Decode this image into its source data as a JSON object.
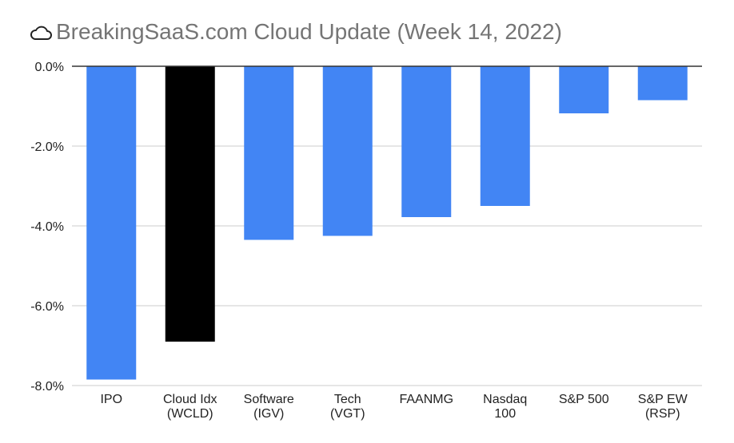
{
  "chart_data": {
    "type": "bar",
    "title": "BreakingSaaS.com Cloud Update (Week 14, 2022)",
    "title_icon": "cloud-outline-icon",
    "xlabel": "",
    "ylabel": "",
    "ylim": [
      -8.0,
      0.0
    ],
    "yticks": [
      "0.0%",
      "-2.0%",
      "-4.0%",
      "-6.0%",
      "-8.0%"
    ],
    "ytick_values": [
      0,
      -2,
      -4,
      -6,
      -8
    ],
    "grid": true,
    "legend": "none",
    "categories": [
      [
        "IPO"
      ],
      [
        "Cloud Idx",
        "(WCLD)"
      ],
      [
        "Software",
        "(IGV)"
      ],
      [
        "Tech",
        "(VGT)"
      ],
      [
        "FAANMG"
      ],
      [
        "Nasdaq",
        "100"
      ],
      [
        "S&P 500"
      ],
      [
        "S&P EW",
        "(RSP)"
      ]
    ],
    "values": [
      -7.85,
      -6.9,
      -4.35,
      -4.25,
      -3.78,
      -3.5,
      -1.18,
      -0.85
    ],
    "colors": [
      "#4285f4",
      "#000000",
      "#4285f4",
      "#4285f4",
      "#4285f4",
      "#4285f4",
      "#4285f4",
      "#4285f4"
    ]
  }
}
